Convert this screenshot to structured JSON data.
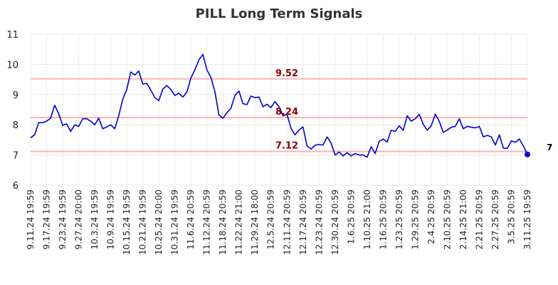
{
  "chart_data": {
    "type": "line",
    "title": "PILL Long Term Signals",
    "ylim": [
      6,
      11
    ],
    "yticks": [
      "6",
      "7",
      "8",
      "9",
      "10",
      "11"
    ],
    "grid": true,
    "x_tick_labels": [
      "9.11.24 19:59",
      "9.17.24 19:59",
      "9.23.24 19:59",
      "9.27.24 20:00",
      "10.3.24 19:59",
      "10.9.24 19:59",
      "10.15.24 19:59",
      "10.21.24 19:59",
      "10.25.24 20:00",
      "10.31.24 19:59",
      "11.6.24 20:59",
      "11.12.24 20:59",
      "11.18.24 20:59",
      "11.22.24 21:00",
      "11.29.24 18:00",
      "12.5.24 20:59",
      "12.11.24 20:59",
      "12.17.24 20:59",
      "12.23.24 20:59",
      "12.30.24 20:59",
      "1.6.25 20:59",
      "1.10.25 21:00",
      "1.16.25 20:59",
      "1.23.25 20:59",
      "1.29.25 20:59",
      "2.4.25 20:59",
      "2.10.25 20:59",
      "2.14.25 21:00",
      "2.21.25 20:59",
      "2.27.25 20:59",
      "3.5.25 20:59",
      "3.11.25 19:59"
    ],
    "series": [
      {
        "color": "#0000cc",
        "values": [
          7.57,
          7.67,
          8.07,
          8.07,
          8.12,
          8.22,
          8.65,
          8.37,
          7.98,
          8.03,
          7.78,
          8.0,
          7.95,
          8.2,
          8.2,
          8.12,
          8.0,
          8.22,
          7.87,
          7.93,
          8.0,
          7.87,
          8.3,
          8.85,
          9.17,
          9.75,
          9.65,
          9.78,
          9.35,
          9.37,
          9.15,
          8.9,
          8.8,
          9.18,
          9.3,
          9.17,
          8.97,
          9.05,
          8.92,
          9.08,
          9.55,
          9.82,
          10.15,
          10.33,
          9.82,
          9.57,
          9.1,
          8.33,
          8.22,
          8.4,
          8.55,
          8.97,
          9.12,
          8.7,
          8.67,
          8.95,
          8.9,
          8.92,
          8.6,
          8.68,
          8.57,
          8.77,
          8.6,
          8.3,
          8.35,
          7.88,
          7.67,
          7.83,
          7.93,
          7.3,
          7.2,
          7.32,
          7.35,
          7.33,
          7.6,
          7.4,
          7.0,
          7.1,
          6.97,
          7.08,
          6.97,
          7.05,
          7.0,
          7.0,
          6.93,
          7.28,
          7.05,
          7.45,
          7.53,
          7.43,
          7.82,
          7.78,
          7.97,
          7.82,
          8.3,
          8.12,
          8.2,
          8.35,
          8.02,
          7.82,
          7.97,
          8.35,
          8.12,
          7.75,
          7.83,
          7.92,
          7.95,
          8.2,
          7.87,
          7.95,
          7.92,
          7.9,
          7.95,
          7.6,
          7.65,
          7.6,
          7.33,
          7.67,
          7.23,
          7.22,
          7.47,
          7.42,
          7.53,
          7.3,
          7.02
        ]
      }
    ],
    "signal_lines": [
      {
        "value": 9.52,
        "label": "9.52"
      },
      {
        "value": 8.24,
        "label": "8.24"
      },
      {
        "value": 7.12,
        "label": "7.12"
      }
    ],
    "signal_line_color": "#ffb3b3",
    "signal_label_color": "#8b0000",
    "last_value_label": "7"
  }
}
